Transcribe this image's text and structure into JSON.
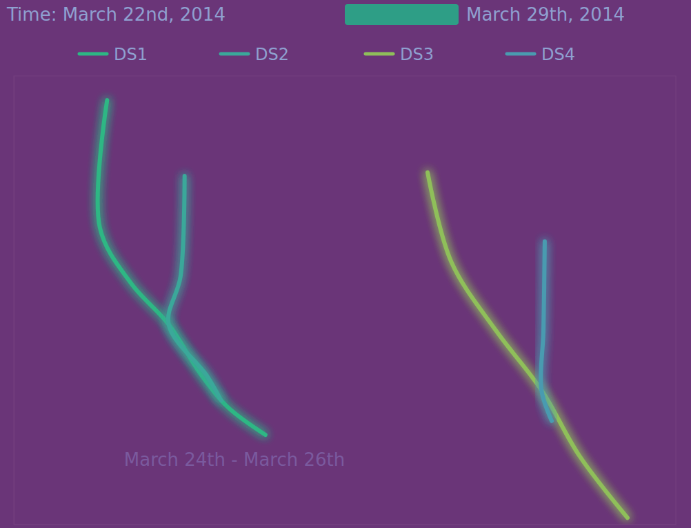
{
  "chart_data": {
    "type": "line",
    "title": "Time: March 22nd, 2014",
    "subtitle": "March 29th, 2014",
    "annotation": "March 24th - March 26th",
    "xlim": [
      0,
      100
    ],
    "ylim": [
      0,
      100
    ],
    "tick_labels": false,
    "grid": false,
    "legend": "top",
    "series": [
      {
        "name": "DS1",
        "color": "#2db784",
        "x": [
          14.1,
          13.0,
          17.7,
          23.4,
          28.1,
          32.3,
          38.0
        ],
        "values": [
          94.6,
          66.2,
          53.8,
          44.6,
          33.8,
          26.2,
          20.0
        ]
      },
      {
        "name": "DS2",
        "color": "#3aa89a",
        "x": [
          25.8,
          25.2,
          23.4,
          29.2,
          31.3
        ],
        "values": [
          77.7,
          55.4,
          44.6,
          33.1,
          27.7
        ]
      },
      {
        "name": "DS3",
        "color": "#8fbf5a",
        "x": [
          62.5,
          66.1,
          72.9,
          79.7,
          85.4,
          92.7
        ],
        "values": [
          78.5,
          58.5,
          43.1,
          30.0,
          15.4,
          1.5
        ]
      },
      {
        "name": "DS4",
        "color": "#4a9bb0",
        "x": [
          80.2,
          80.0,
          79.7,
          81.25
        ],
        "values": [
          63.1,
          43.1,
          30.0,
          23.1
        ]
      }
    ]
  }
}
